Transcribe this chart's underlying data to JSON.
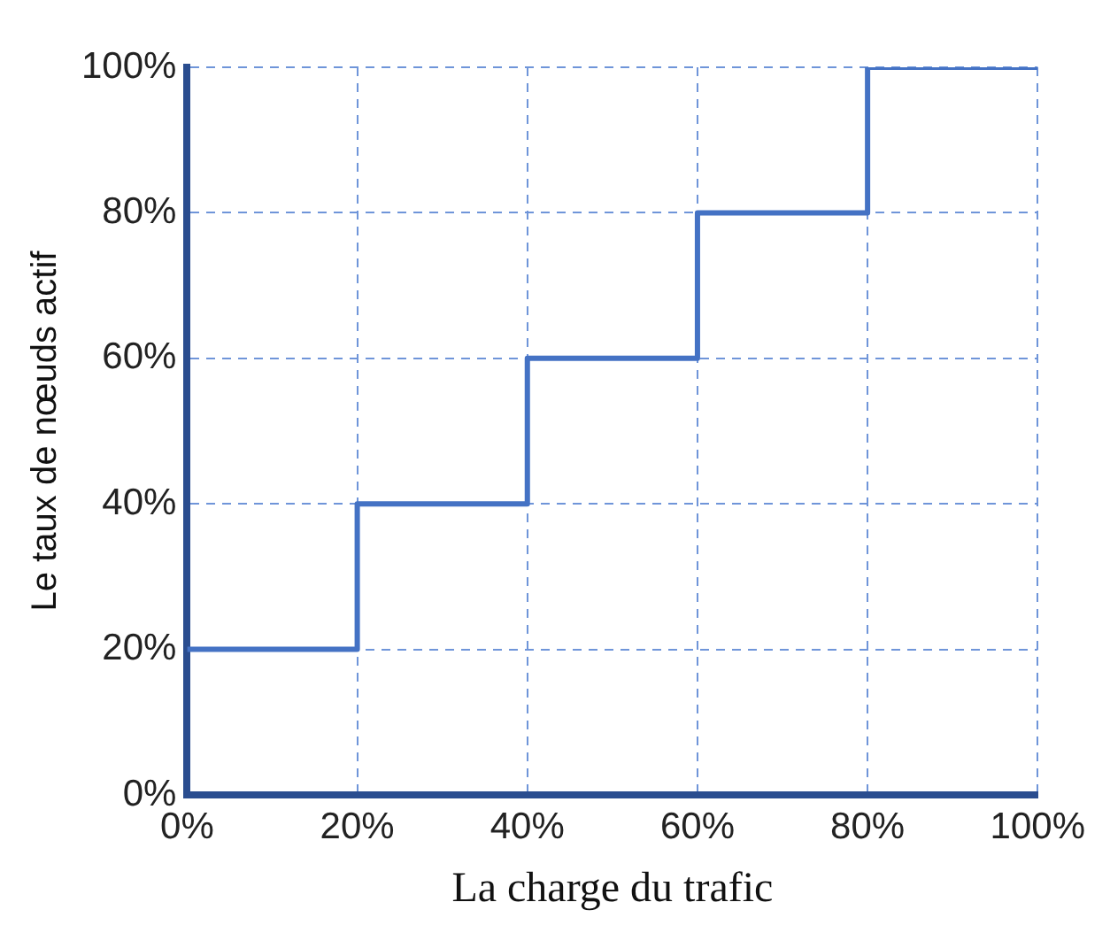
{
  "chart_data": {
    "type": "step",
    "xlabel": "La charge du trafic",
    "ylabel": "Le taux de nœuds actif",
    "x": [
      0,
      20,
      40,
      60,
      80,
      100
    ],
    "series": [
      {
        "color": "#4472c4",
        "values": [
          20,
          40,
          60,
          80,
          100,
          100
        ]
      }
    ],
    "xlim": [
      0,
      100
    ],
    "ylim": [
      0,
      100
    ],
    "xticks": [
      {
        "value": 0,
        "label": "0%"
      },
      {
        "value": 20,
        "label": "20%"
      },
      {
        "value": 40,
        "label": "40%"
      },
      {
        "value": 60,
        "label": "60%"
      },
      {
        "value": 80,
        "label": "80%"
      },
      {
        "value": 100,
        "label": "100%"
      }
    ],
    "yticks": [
      {
        "value": 0,
        "label": "0%"
      },
      {
        "value": 20,
        "label": "20%"
      },
      {
        "value": 40,
        "label": "40%"
      },
      {
        "value": 60,
        "label": "60%"
      },
      {
        "value": 80,
        "label": "80%"
      },
      {
        "value": 100,
        "label": "100%"
      }
    ],
    "grid": true,
    "legend": false,
    "line_style": "solid",
    "marker": "none"
  }
}
